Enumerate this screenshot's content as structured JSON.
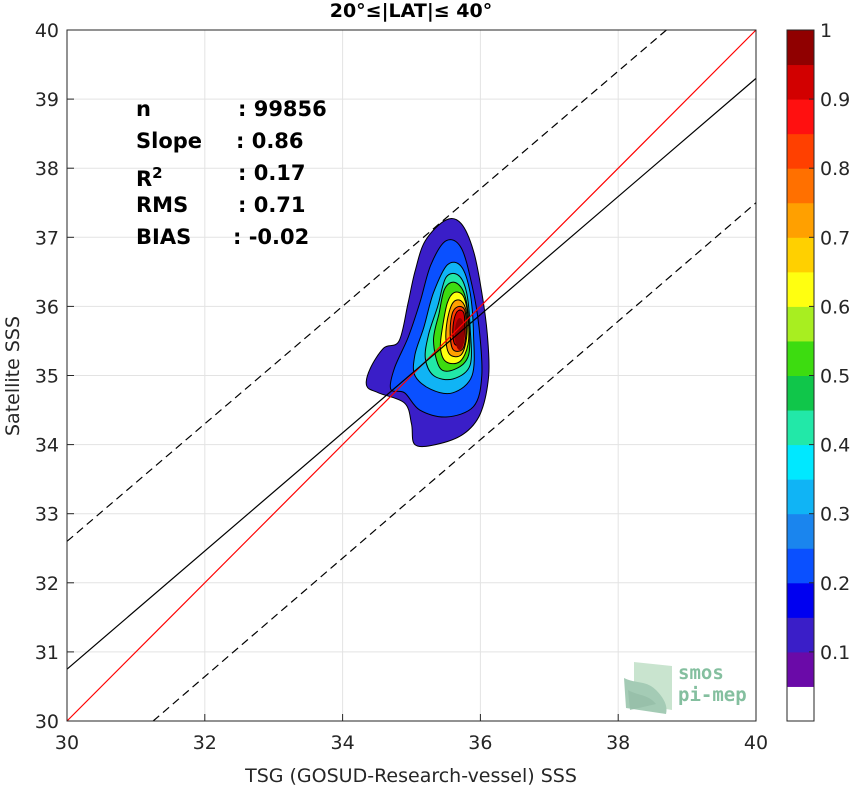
{
  "title": "20°≤|LAT|≤ 40°",
  "xlabel": "TSG (GOSUD-Research-vessel) SSS",
  "ylabel": "Satellite SSS",
  "stats": [
    {
      "key": "n",
      "value": ": 99856"
    },
    {
      "key": "Slope",
      "value": ": 0.86"
    },
    {
      "key": "R",
      "sup": "2",
      "value": ": 0.17"
    },
    {
      "key": "RMS",
      "value": ": 0.71"
    },
    {
      "key": "BIAS",
      "value": ": -0.02"
    }
  ],
  "logo": {
    "line1": "smos",
    "line2": "pi-mep"
  },
  "colorbar": {
    "tick_labels": [
      "0.1",
      "0.2",
      "0.3",
      "0.4",
      "0.5",
      "0.6",
      "0.7",
      "0.8",
      "0.9",
      "1"
    ],
    "colors": [
      "#ffffff",
      "#6a0aa8",
      "#3a1ec8",
      "#0000f0",
      "#0a50ff",
      "#1a85ee",
      "#10b4f5",
      "#00e8ff",
      "#22e8a8",
      "#10c64a",
      "#3ddc10",
      "#a8ee20",
      "#ffff10",
      "#ffd000",
      "#ffa000",
      "#ff7000",
      "#ff4000",
      "#ff1010",
      "#d20000",
      "#900000"
    ],
    "range": [
      0,
      1
    ]
  },
  "chart_data": {
    "type": "contour-density-scatter",
    "title": "20°≤|LAT|≤ 40°",
    "xlabel": "TSG (GOSUD-Research-vessel) SSS",
    "ylabel": "Satellite SSS",
    "xlim": [
      30,
      40
    ],
    "ylim": [
      30,
      40
    ],
    "xticks": [
      "30",
      "32",
      "34",
      "36",
      "38",
      "40"
    ],
    "yticks": [
      "30",
      "31",
      "32",
      "33",
      "34",
      "35",
      "36",
      "37",
      "38",
      "39",
      "40"
    ],
    "grid": true,
    "stats": {
      "n": 99856,
      "slope": 0.86,
      "r2": 0.17,
      "rms": 0.71,
      "bias": -0.02
    },
    "lines": [
      {
        "name": "1:1",
        "color": "#ff0000",
        "style": "solid",
        "points": [
          [
            30,
            30
          ],
          [
            40,
            40
          ]
        ]
      },
      {
        "name": "regression",
        "color": "#000000",
        "style": "solid",
        "points": [
          [
            30,
            30.75
          ],
          [
            40,
            39.3
          ]
        ]
      },
      {
        "name": "upper",
        "color": "#000000",
        "style": "dashed",
        "points": [
          [
            30,
            32.6
          ],
          [
            38.7,
            40
          ]
        ]
      },
      {
        "name": "lower",
        "color": "#000000",
        "style": "dashed",
        "points": [
          [
            31.25,
            30
          ],
          [
            40,
            37.5
          ]
        ]
      }
    ],
    "density_peak": {
      "x": 35.7,
      "y": 35.6
    },
    "contours": [
      {
        "level": 0.05,
        "color": "#3a1ec8",
        "points": [
          [
            35.05,
            34.0
          ],
          [
            35.35,
            34.0
          ],
          [
            35.75,
            34.15
          ],
          [
            36.0,
            34.45
          ],
          [
            36.12,
            35.0
          ],
          [
            36.1,
            35.6
          ],
          [
            36.02,
            36.2
          ],
          [
            35.9,
            36.8
          ],
          [
            35.72,
            37.2
          ],
          [
            35.5,
            37.25
          ],
          [
            35.2,
            36.95
          ],
          [
            35.05,
            36.5
          ],
          [
            34.95,
            36.05
          ],
          [
            34.82,
            35.5
          ],
          [
            34.6,
            35.4
          ],
          [
            34.4,
            35.1
          ],
          [
            34.35,
            34.85
          ],
          [
            34.52,
            34.75
          ],
          [
            34.9,
            34.6
          ],
          [
            35.0,
            34.3
          ]
        ]
      },
      {
        "level": 0.15,
        "color": "#0a50ff",
        "points": [
          [
            35.12,
            34.5
          ],
          [
            35.5,
            34.4
          ],
          [
            35.9,
            34.55
          ],
          [
            36.02,
            35.0
          ],
          [
            35.98,
            35.7
          ],
          [
            35.88,
            36.3
          ],
          [
            35.72,
            36.85
          ],
          [
            35.5,
            36.95
          ],
          [
            35.28,
            36.6
          ],
          [
            35.12,
            36.05
          ],
          [
            34.95,
            35.55
          ],
          [
            34.75,
            35.1
          ],
          [
            34.7,
            34.8
          ],
          [
            34.9,
            34.75
          ]
        ]
      },
      {
        "level": 0.3,
        "color": "#10b4f5",
        "points": [
          [
            35.28,
            34.8
          ],
          [
            35.6,
            34.75
          ],
          [
            35.88,
            35.0
          ],
          [
            35.9,
            35.6
          ],
          [
            35.85,
            36.2
          ],
          [
            35.72,
            36.58
          ],
          [
            35.52,
            36.6
          ],
          [
            35.32,
            36.2
          ],
          [
            35.18,
            35.7
          ],
          [
            35.05,
            35.3
          ],
          [
            35.05,
            35.0
          ]
        ]
      },
      {
        "level": 0.4,
        "color": "#22e8a8",
        "points": [
          [
            35.32,
            35.0
          ],
          [
            35.6,
            34.95
          ],
          [
            35.85,
            35.15
          ],
          [
            35.85,
            35.7
          ],
          [
            35.8,
            36.2
          ],
          [
            35.68,
            36.45
          ],
          [
            35.5,
            36.42
          ],
          [
            35.38,
            36.0
          ],
          [
            35.25,
            35.6
          ],
          [
            35.2,
            35.25
          ]
        ]
      },
      {
        "level": 0.5,
        "color": "#3ddc10",
        "points": [
          [
            35.42,
            35.1
          ],
          [
            35.65,
            35.1
          ],
          [
            35.83,
            35.3
          ],
          [
            35.83,
            35.8
          ],
          [
            35.76,
            36.2
          ],
          [
            35.62,
            36.35
          ],
          [
            35.48,
            36.25
          ],
          [
            35.4,
            35.9
          ],
          [
            35.32,
            35.5
          ]
        ]
      },
      {
        "level": 0.6,
        "color": "#ffff10",
        "points": [
          [
            35.5,
            35.2
          ],
          [
            35.7,
            35.2
          ],
          [
            35.82,
            35.45
          ],
          [
            35.82,
            35.85
          ],
          [
            35.75,
            36.15
          ],
          [
            35.62,
            36.2
          ],
          [
            35.52,
            36.05
          ],
          [
            35.45,
            35.7
          ],
          [
            35.42,
            35.4
          ]
        ]
      },
      {
        "level": 0.7,
        "color": "#ffa000",
        "points": [
          [
            35.56,
            35.3
          ],
          [
            35.72,
            35.3
          ],
          [
            35.8,
            35.55
          ],
          [
            35.8,
            35.9
          ],
          [
            35.72,
            36.08
          ],
          [
            35.6,
            36.05
          ],
          [
            35.52,
            35.8
          ],
          [
            35.5,
            35.5
          ]
        ]
      },
      {
        "level": 0.8,
        "color": "#ff4000",
        "points": [
          [
            35.6,
            35.38
          ],
          [
            35.74,
            35.38
          ],
          [
            35.79,
            35.6
          ],
          [
            35.78,
            35.92
          ],
          [
            35.7,
            36.0
          ],
          [
            35.6,
            35.92
          ],
          [
            35.56,
            35.65
          ]
        ]
      },
      {
        "level": 0.9,
        "color": "#d20000",
        "points": [
          [
            35.63,
            35.45
          ],
          [
            35.74,
            35.45
          ],
          [
            35.77,
            35.65
          ],
          [
            35.76,
            35.9
          ],
          [
            35.68,
            35.94
          ],
          [
            35.62,
            35.82
          ],
          [
            35.6,
            35.6
          ]
        ]
      }
    ]
  }
}
